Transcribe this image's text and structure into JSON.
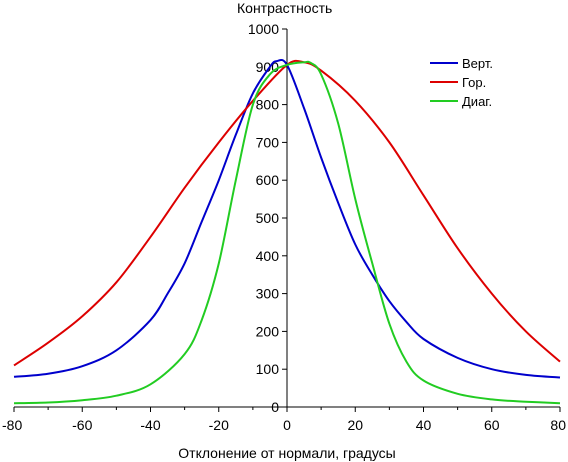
{
  "chart_data": {
    "type": "line",
    "title": "",
    "ylabel": "Контрастность",
    "xlabel": "Отклонение от нормали, градусы",
    "xlim": [
      -80,
      80
    ],
    "ylim": [
      0,
      1000
    ],
    "xticks": [
      -80,
      -60,
      -40,
      -20,
      0,
      20,
      40,
      60,
      80
    ],
    "yticks": [
      0,
      100,
      200,
      300,
      400,
      500,
      600,
      700,
      800,
      900,
      1000
    ],
    "grid": false,
    "legend_position": "top-right",
    "series": [
      {
        "name": "Верт.",
        "color": "#0000cc",
        "x": [
          -80,
          -70,
          -60,
          -50,
          -40,
          -35,
          -30,
          -25,
          -20,
          -15,
          -10,
          -5,
          -3,
          0,
          5,
          10,
          15,
          20,
          25,
          30,
          35,
          40,
          50,
          60,
          70,
          80
        ],
        "y": [
          80,
          88,
          108,
          150,
          230,
          300,
          380,
          490,
          600,
          720,
          830,
          900,
          915,
          905,
          790,
          660,
          540,
          430,
          350,
          280,
          225,
          180,
          130,
          100,
          85,
          78
        ]
      },
      {
        "name": "Гор.",
        "color": "#dd0000",
        "x": [
          -80,
          -70,
          -60,
          -50,
          -40,
          -30,
          -20,
          -10,
          0,
          5,
          10,
          20,
          30,
          40,
          50,
          60,
          70,
          80
        ],
        "y": [
          110,
          170,
          240,
          330,
          450,
          580,
          700,
          810,
          905,
          912,
          890,
          810,
          700,
          560,
          420,
          300,
          200,
          120
        ]
      },
      {
        "name": "Диаг.",
        "color": "#22cc22",
        "x": [
          -80,
          -70,
          -60,
          -50,
          -40,
          -30,
          -25,
          -20,
          -15,
          -10,
          -5,
          0,
          5,
          7,
          10,
          15,
          20,
          25,
          30,
          35,
          40,
          50,
          60,
          70,
          80
        ],
        "y": [
          10,
          12,
          18,
          30,
          60,
          140,
          230,
          380,
          600,
          800,
          880,
          905,
          912,
          910,
          880,
          750,
          550,
          380,
          220,
          120,
          70,
          35,
          20,
          14,
          10
        ]
      }
    ]
  }
}
